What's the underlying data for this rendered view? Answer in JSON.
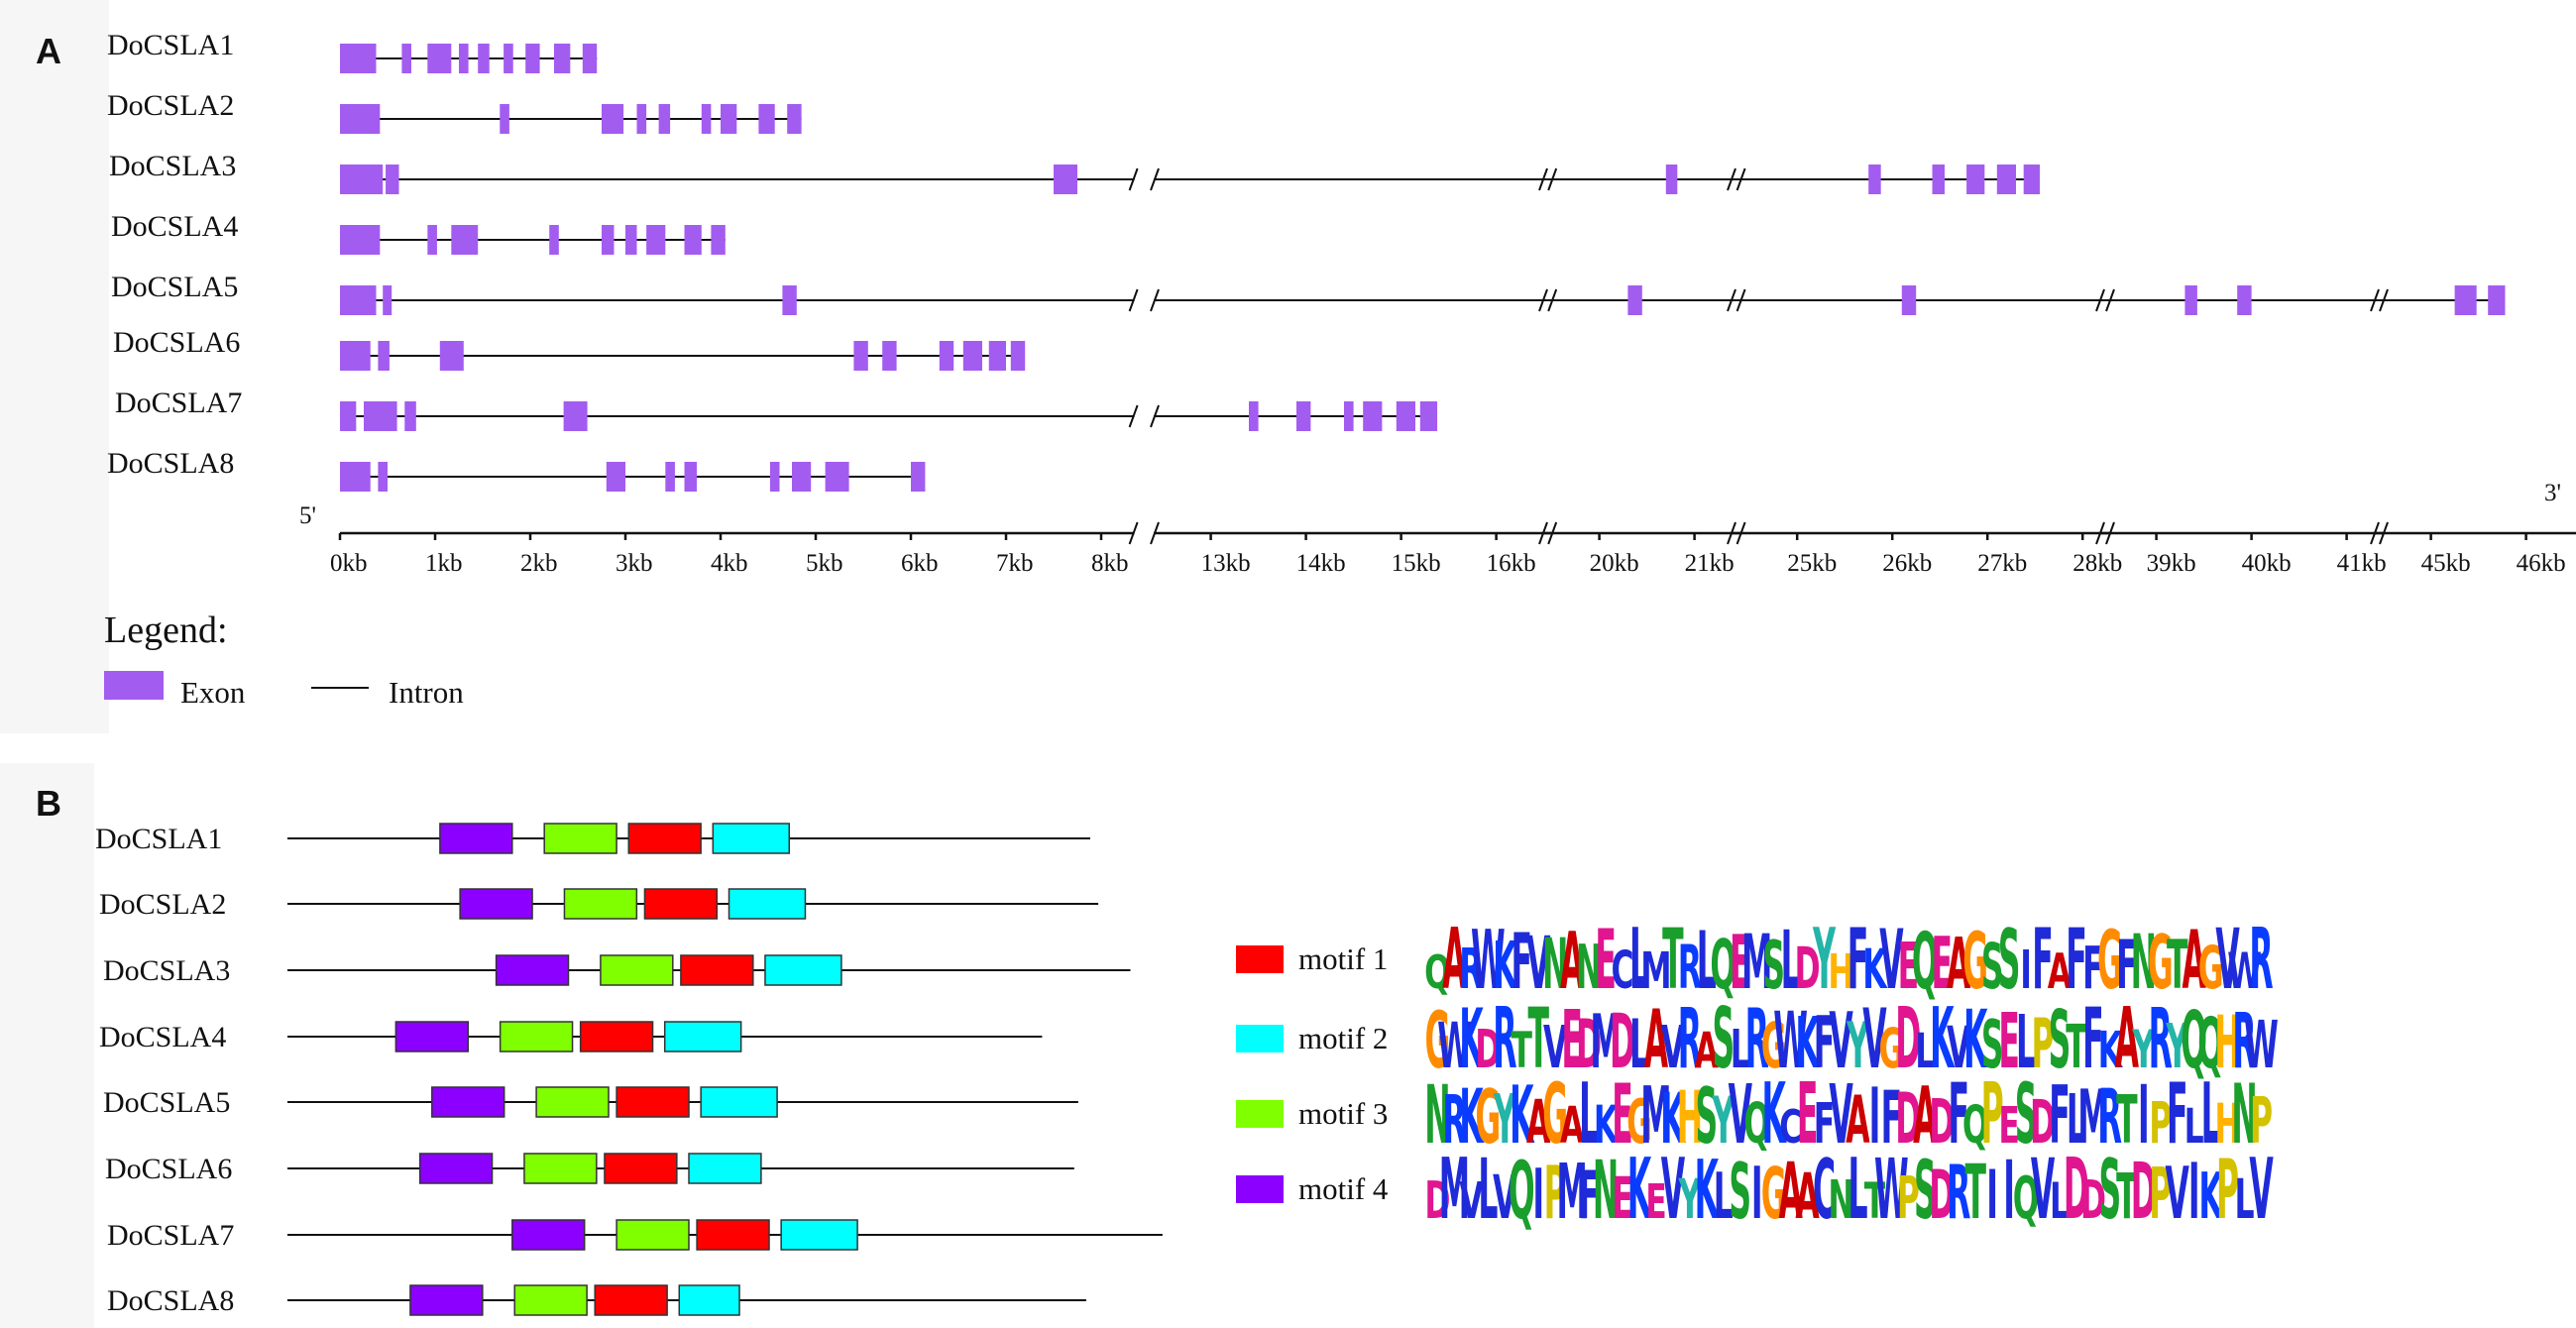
{
  "panel_a": {
    "letter": "A",
    "end_5": "5'",
    "end_3": "3'",
    "tick_labels": [
      "0kb",
      "1kb",
      "2kb",
      "3kb",
      "4kb",
      "5kb",
      "6kb",
      "7kb",
      "8kb",
      "13kb",
      "14kb",
      "15kb",
      "16kb",
      "20kb",
      "21kb",
      "25kb",
      "26kb",
      "27kb",
      "28kb",
      "39kb",
      "40kb",
      "41kb",
      "45kb",
      "46kb"
    ],
    "legend_title": "Legend:",
    "legend_exon": "Exon",
    "legend_intron": "Intron",
    "colors": {
      "exon": "#a35cf0"
    },
    "genes": [
      {
        "name": "DoCSLA1",
        "length_kb": 2.7,
        "exons": [
          [
            0.0,
            0.38
          ],
          [
            0.65,
            0.75
          ],
          [
            0.92,
            1.17
          ],
          [
            1.25,
            1.35
          ],
          [
            1.45,
            1.57
          ],
          [
            1.72,
            1.82
          ],
          [
            1.95,
            2.1
          ],
          [
            2.25,
            2.42
          ],
          [
            2.55,
            2.7
          ]
        ]
      },
      {
        "name": "DoCSLA2",
        "length_kb": 4.85,
        "exons": [
          [
            0.0,
            0.42
          ],
          [
            1.68,
            1.78
          ],
          [
            2.75,
            2.98
          ],
          [
            3.12,
            3.22
          ],
          [
            3.35,
            3.47
          ],
          [
            3.8,
            3.9
          ],
          [
            4.0,
            4.17
          ],
          [
            4.4,
            4.57
          ],
          [
            4.7,
            4.85
          ]
        ]
      },
      {
        "name": "DoCSLA3",
        "length_kb": 27.5,
        "exons": [
          [
            0.0,
            0.45
          ],
          [
            0.48,
            0.62
          ],
          [
            7.5,
            7.75
          ],
          [
            20.7,
            20.82
          ],
          [
            25.75,
            25.88
          ],
          [
            26.42,
            26.55
          ],
          [
            26.78,
            26.97
          ],
          [
            27.1,
            27.3
          ],
          [
            27.38,
            27.55
          ]
        ]
      },
      {
        "name": "DoCSLA4",
        "length_kb": 4.05,
        "exons": [
          [
            0.0,
            0.42
          ],
          [
            0.92,
            1.02
          ],
          [
            1.17,
            1.45
          ],
          [
            2.2,
            2.3
          ],
          [
            2.75,
            2.88
          ],
          [
            3.0,
            3.12
          ],
          [
            3.22,
            3.42
          ],
          [
            3.62,
            3.8
          ],
          [
            3.9,
            4.05
          ]
        ]
      },
      {
        "name": "DoCSLA5",
        "length_kb": 45.75,
        "exons": [
          [
            0.0,
            0.38
          ],
          [
            0.45,
            0.52
          ],
          [
            4.65,
            4.8
          ],
          [
            20.3,
            20.45
          ],
          [
            26.1,
            26.25
          ],
          [
            39.3,
            39.43
          ],
          [
            39.85,
            40.0
          ],
          [
            45.25,
            45.48
          ],
          [
            45.6,
            45.78
          ]
        ]
      },
      {
        "name": "DoCSLA6",
        "length_kb": 7.15,
        "exons": [
          [
            0.0,
            0.32
          ],
          [
            0.4,
            0.52
          ],
          [
            1.05,
            1.3
          ],
          [
            5.4,
            5.55
          ],
          [
            5.7,
            5.85
          ],
          [
            6.3,
            6.45
          ],
          [
            6.55,
            6.75
          ],
          [
            6.82,
            7.0
          ],
          [
            7.05,
            7.2
          ]
        ]
      },
      {
        "name": "DoCSLA7",
        "length_kb": 15.35,
        "exons": [
          [
            0.0,
            0.17
          ],
          [
            0.25,
            0.6
          ],
          [
            0.68,
            0.8
          ],
          [
            2.35,
            2.6
          ],
          [
            13.4,
            13.5
          ],
          [
            13.9,
            14.05
          ],
          [
            14.4,
            14.5
          ],
          [
            14.6,
            14.8
          ],
          [
            14.95,
            15.15
          ],
          [
            15.2,
            15.38
          ]
        ]
      },
      {
        "name": "DoCSLA8",
        "length_kb": 6.1,
        "exons": [
          [
            0.0,
            0.32
          ],
          [
            0.4,
            0.5
          ],
          [
            2.8,
            3.0
          ],
          [
            3.42,
            3.52
          ],
          [
            3.62,
            3.75
          ],
          [
            4.52,
            4.62
          ],
          [
            4.75,
            4.95
          ],
          [
            5.1,
            5.35
          ],
          [
            6.0,
            6.15
          ]
        ]
      }
    ]
  },
  "panel_b": {
    "letter": "B",
    "colors": {
      "motif_1": "#ff0000",
      "motif_2": "#00ffff",
      "motif_3": "#7fff00",
      "motif_4": "#8c00ff"
    },
    "proteins": [
      {
        "name": "DoCSLA1",
        "length": 1.0,
        "motifs": [
          {
            "id": 4,
            "start": 0.19,
            "end": 0.28
          },
          {
            "id": 3,
            "start": 0.32,
            "end": 0.41
          },
          {
            "id": 1,
            "start": 0.425,
            "end": 0.515
          },
          {
            "id": 2,
            "start": 0.53,
            "end": 0.625
          }
        ]
      },
      {
        "name": "DoCSLA2",
        "length": 1.01,
        "motifs": [
          {
            "id": 4,
            "start": 0.215,
            "end": 0.305
          },
          {
            "id": 3,
            "start": 0.345,
            "end": 0.435
          },
          {
            "id": 1,
            "start": 0.445,
            "end": 0.535
          },
          {
            "id": 2,
            "start": 0.55,
            "end": 0.645
          }
        ]
      },
      {
        "name": "DoCSLA3",
        "length": 1.05,
        "motifs": [
          {
            "id": 4,
            "start": 0.26,
            "end": 0.35
          },
          {
            "id": 3,
            "start": 0.39,
            "end": 0.48
          },
          {
            "id": 1,
            "start": 0.49,
            "end": 0.58
          },
          {
            "id": 2,
            "start": 0.595,
            "end": 0.69
          }
        ]
      },
      {
        "name": "DoCSLA4",
        "length": 0.94,
        "motifs": [
          {
            "id": 4,
            "start": 0.135,
            "end": 0.225
          },
          {
            "id": 3,
            "start": 0.265,
            "end": 0.355
          },
          {
            "id": 1,
            "start": 0.365,
            "end": 0.455
          },
          {
            "id": 2,
            "start": 0.47,
            "end": 0.565
          }
        ]
      },
      {
        "name": "DoCSLA5",
        "length": 0.985,
        "motifs": [
          {
            "id": 4,
            "start": 0.18,
            "end": 0.27
          },
          {
            "id": 3,
            "start": 0.31,
            "end": 0.4
          },
          {
            "id": 1,
            "start": 0.41,
            "end": 0.5
          },
          {
            "id": 2,
            "start": 0.515,
            "end": 0.61
          }
        ]
      },
      {
        "name": "DoCSLA6",
        "length": 0.98,
        "motifs": [
          {
            "id": 4,
            "start": 0.165,
            "end": 0.255
          },
          {
            "id": 3,
            "start": 0.295,
            "end": 0.385
          },
          {
            "id": 1,
            "start": 0.395,
            "end": 0.485
          },
          {
            "id": 2,
            "start": 0.5,
            "end": 0.59
          }
        ]
      },
      {
        "name": "DoCSLA7",
        "length": 1.09,
        "motifs": [
          {
            "id": 4,
            "start": 0.28,
            "end": 0.37
          },
          {
            "id": 3,
            "start": 0.41,
            "end": 0.5
          },
          {
            "id": 1,
            "start": 0.51,
            "end": 0.6
          },
          {
            "id": 2,
            "start": 0.615,
            "end": 0.71
          }
        ]
      },
      {
        "name": "DoCSLA8",
        "length": 0.995,
        "motifs": [
          {
            "id": 4,
            "start": 0.153,
            "end": 0.243
          },
          {
            "id": 3,
            "start": 0.283,
            "end": 0.373
          },
          {
            "id": 1,
            "start": 0.383,
            "end": 0.473
          },
          {
            "id": 2,
            "start": 0.488,
            "end": 0.563
          }
        ]
      }
    ],
    "motifs": [
      {
        "id": 1,
        "label": "motif 1",
        "sequence": "QARWKFVNANECLMTRLQEMSLDYHFKVEQEAGSSIFAFFGFNGTAGVWR"
      },
      {
        "id": 2,
        "label": "motif 2",
        "sequence": "GWKDRTTVEDMDLAVRASLRGWKFVYVGDLKVKSELPSTFKAYRYQQHRW"
      },
      {
        "id": 3,
        "label": "motif 3",
        "sequence": "NRKGYKAGALKEGMKHSYVQKCEFVAIFDADFQPESDFLMRTIPFLLHNP"
      },
      {
        "id": 4,
        "label": "motif 4",
        "sequence": "DMVLVQIPMFNEKEVYKLSIGAACNLTWPSDRTIIQVLDDSTDPVIKPLV"
      }
    ]
  }
}
